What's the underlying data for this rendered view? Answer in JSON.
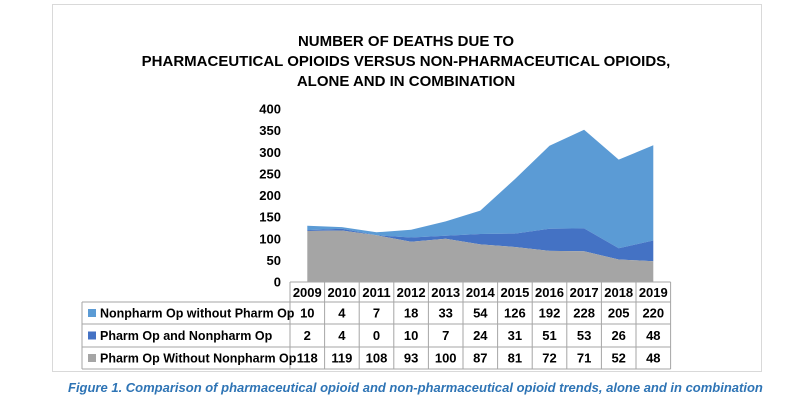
{
  "chart_data": {
    "type": "area",
    "stacked": true,
    "title_lines": [
      "NUMBER OF DEATHS DUE TO",
      "PHARMACEUTICAL OPIOIDS VERSUS NON-PHARMACEUTICAL OPIOIDS,",
      "ALONE AND IN COMBINATION"
    ],
    "x": [
      "2009",
      "2010",
      "2011",
      "2012",
      "2013",
      "2014",
      "2015",
      "2016",
      "2017",
      "2018",
      "2019"
    ],
    "ylim": [
      0,
      400
    ],
    "yticks": [
      0,
      50,
      100,
      150,
      200,
      250,
      300,
      350,
      400
    ],
    "grid": false,
    "legend": "data-table",
    "series": [
      {
        "name": "Nonpharm Op without Pharm Op",
        "color": "#5b9bd5",
        "values": [
          10,
          4,
          7,
          18,
          33,
          54,
          126,
          192,
          228,
          205,
          220
        ]
      },
      {
        "name": "Pharm Op and Nonpharm Op",
        "color": "#4472c4",
        "values": [
          2,
          4,
          0,
          10,
          7,
          24,
          31,
          51,
          53,
          26,
          48
        ]
      },
      {
        "name": "Pharm Op Without Nonpharm Op",
        "color": "#a5a5a5",
        "values": [
          118,
          119,
          108,
          93,
          100,
          87,
          81,
          72,
          71,
          52,
          48
        ]
      }
    ]
  },
  "caption": "Figure 1. Comparison of pharmaceutical opioid and non-pharmaceutical opioid trends, alone and in combination"
}
